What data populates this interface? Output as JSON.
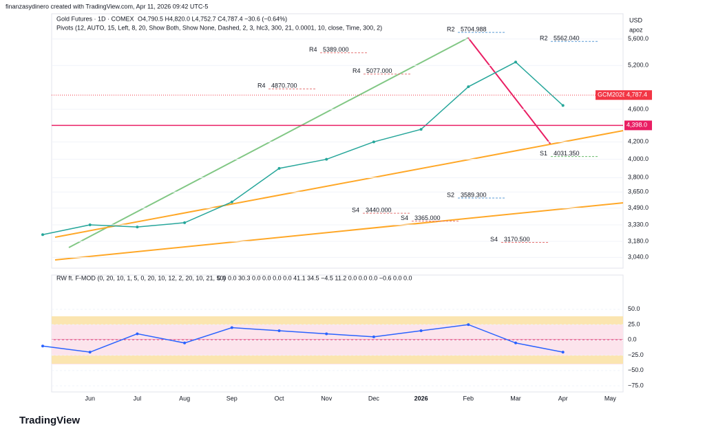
{
  "header": {
    "credit": "finanzasydinero created with TradingView.com, Apr 11, 2026 09:42 UTC-5",
    "ohlc": "O4,790.5 H4,820.0 L4,752.7 C4,787.4 −30.6 (−0.64%)",
    "pivots": "Pivots (12, AUTO, 15, Left, 8, 20, Show Both, Show None, Dashed, 2, 3, hlc3, 300, 21, 0.0001, 10, close, Time, 300, 2)",
    "currency": "USD",
    "mode": "apoz"
  },
  "chart_data": [
    {
      "type": "line",
      "title": "Gold Futures · 1D · COMEX",
      "log_scale": true,
      "categories": [
        null,
        "Jun",
        "Jul",
        "Aug",
        "Sep",
        "Oct",
        "Nov",
        "Dec",
        "2026",
        "Feb",
        "Mar",
        "Apr",
        "May"
      ],
      "series": [
        {
          "color": "#26a69a",
          "values": [
            3240,
            3330,
            3310,
            3350,
            3550,
            3900,
            4000,
            4200,
            4350,
            4900,
            5250,
            4650,
            null
          ]
        }
      ],
      "ylim": [
        2950,
        6010
      ],
      "yticks": [
        {
          "value": 5600,
          "label": "5,600.0"
        },
        {
          "value": 5200,
          "label": "5,200.0"
        },
        {
          "value": 4600,
          "label": "4,600.0"
        },
        {
          "value": 4200,
          "label": "4,200.0"
        },
        {
          "value": 4000,
          "label": "4,000.0"
        },
        {
          "value": 3800,
          "label": "3,800.0"
        },
        {
          "value": 3650,
          "label": "3,650.0"
        },
        {
          "value": 3490,
          "label": "3,490.0"
        },
        {
          "value": 3330,
          "label": "3,330.0"
        },
        {
          "value": 3180,
          "label": "3,180.0"
        },
        {
          "value": 3040,
          "label": "3,040.0"
        }
      ],
      "last_price": {
        "name": "GCM2026",
        "value": 4787.4,
        "label": "4,787.4",
        "color": "#f23645"
      },
      "alert_price": {
        "value": 4398,
        "label": "4,398.0",
        "color": "#e91e63"
      },
      "pivots": [
        {
          "name": "R2",
          "value": 5704.988,
          "label": "5704.988",
          "color": "#5b9bd5"
        },
        {
          "name": "R4",
          "value": 5389,
          "label": "5389.000",
          "color": "#e57373"
        },
        {
          "name": "R4",
          "value": 5077,
          "label": "5077.000",
          "color": "#e57373"
        },
        {
          "name": "R4",
          "value": 4870.7,
          "label": "4870.700",
          "color": "#e57373"
        },
        {
          "name": "R2",
          "value": 5562.04,
          "label": "5562.040",
          "color": "#5b9bd5"
        },
        {
          "name": "S1",
          "value": 4031.35,
          "label": "4031.350",
          "color": "#66bb6a"
        },
        {
          "name": "S2",
          "value": 3589.3,
          "label": "3589.300",
          "color": "#5b9bd5"
        },
        {
          "name": "S4",
          "value": 3440,
          "label": "3440.000",
          "color": "#e57373"
        },
        {
          "name": "S4",
          "value": 3365,
          "label": "3365.000",
          "color": "#e57373"
        },
        {
          "name": "S4",
          "value": 3170.5,
          "label": "3170.500",
          "color": "#e57373"
        }
      ]
    },
    {
      "type": "line",
      "title": "RW ft. F-MOD (0, 20, 10, 1, 5, 0, 20, 10, 12, 2, 20, 10, 21, 50)",
      "legend_values": "0.0 0.0 30.3 0.0 0.0 0.0 0.0 41.1 34.5 −4.5 11.2 0.0 0.0 0.0 −0.6 0.0 0.0",
      "series": [
        {
          "color": "#2962ff",
          "values": [
            -10,
            -20,
            10,
            -5,
            20,
            15,
            10,
            5,
            15,
            25,
            -5,
            -20,
            null
          ]
        }
      ],
      "ylim": [
        -85,
        106
      ],
      "yticks": [
        {
          "value": 50,
          "label": "50.0"
        },
        {
          "value": 25,
          "label": "25.0"
        },
        {
          "value": 0,
          "label": "0.0"
        },
        {
          "value": -25,
          "label": "−25.0"
        },
        {
          "value": -50,
          "label": "−50.0"
        },
        {
          "value": -75,
          "label": "−75.0"
        }
      ]
    }
  ],
  "footer": {
    "brand": "TradingView"
  }
}
